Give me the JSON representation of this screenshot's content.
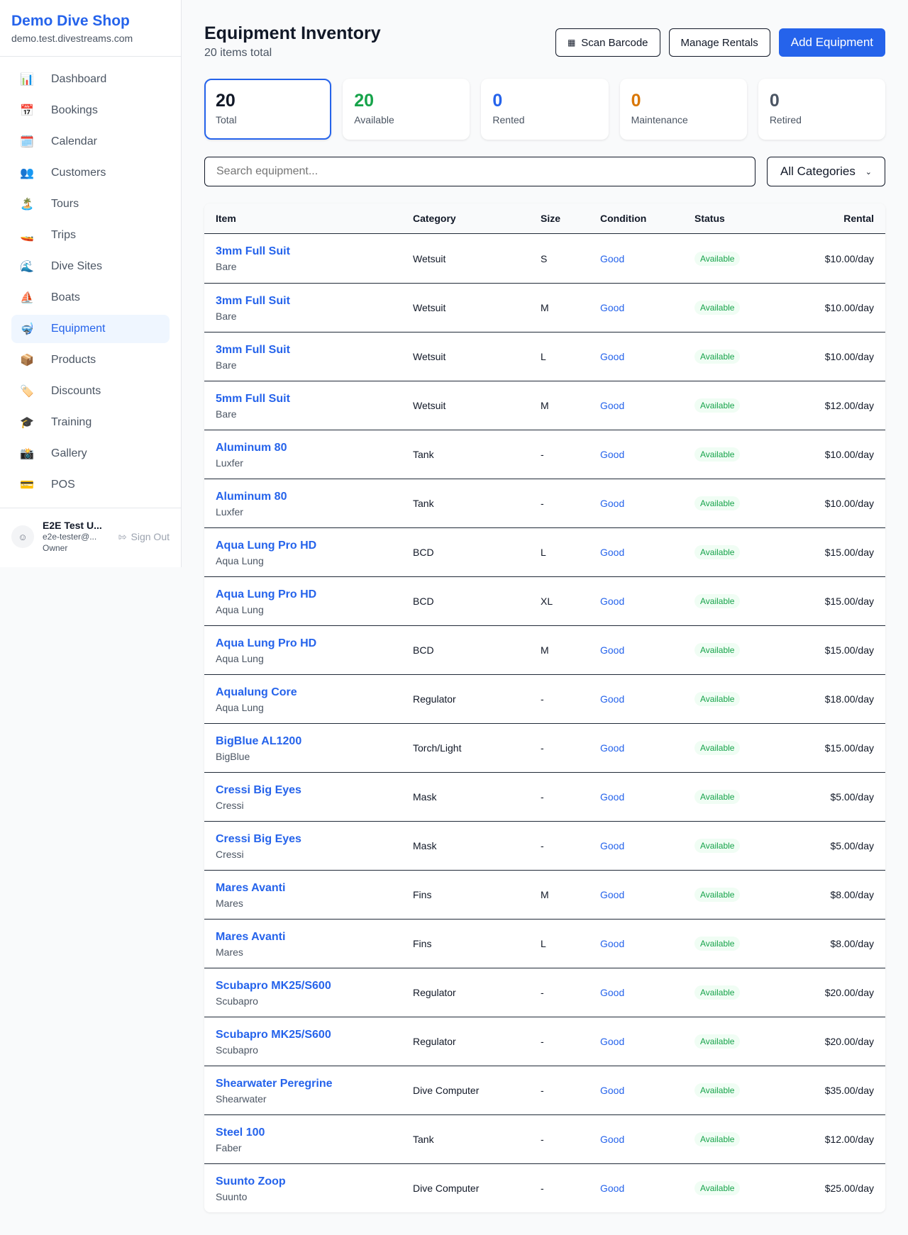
{
  "sidebar": {
    "brand": "Demo Dive Shop",
    "domain": "demo.test.divestreams.com",
    "items": [
      {
        "label": "Dashboard",
        "icon": "📊"
      },
      {
        "label": "Bookings",
        "icon": "📅"
      },
      {
        "label": "Calendar",
        "icon": "🗓️"
      },
      {
        "label": "Customers",
        "icon": "👥"
      },
      {
        "label": "Tours",
        "icon": "🏝️"
      },
      {
        "label": "Trips",
        "icon": "🚤"
      },
      {
        "label": "Dive Sites",
        "icon": "🌊"
      },
      {
        "label": "Boats",
        "icon": "⛵"
      },
      {
        "label": "Equipment",
        "icon": "🤿"
      },
      {
        "label": "Products",
        "icon": "📦"
      },
      {
        "label": "Discounts",
        "icon": "🏷️"
      },
      {
        "label": "Training",
        "icon": "🎓"
      },
      {
        "label": "Gallery",
        "icon": "📸"
      },
      {
        "label": "POS",
        "icon": "💳"
      }
    ],
    "active": "Equipment",
    "user": {
      "name": "E2E Test U...",
      "email": "e2e-tester@...",
      "role": "Owner",
      "sign_out": "Sign Out"
    }
  },
  "header": {
    "title": "Equipment Inventory",
    "subtitle": "20 items total",
    "scan": "Scan Barcode",
    "manage": "Manage Rentals",
    "add": "Add Equipment"
  },
  "stats": [
    {
      "value": "20",
      "label": "Total",
      "color": "#111827"
    },
    {
      "value": "20",
      "label": "Available",
      "color": "#16a34a"
    },
    {
      "value": "0",
      "label": "Rented",
      "color": "#2563eb"
    },
    {
      "value": "0",
      "label": "Maintenance",
      "color": "#d97706"
    },
    {
      "value": "0",
      "label": "Retired",
      "color": "#4b5563"
    }
  ],
  "filters": {
    "search_placeholder": "Search equipment...",
    "category": "All Categories"
  },
  "table": {
    "columns": [
      "Item",
      "Category",
      "Size",
      "Condition",
      "Status",
      "Rental"
    ],
    "rows": [
      [
        "3mm Full Suit",
        "Bare",
        "Wetsuit",
        "S",
        "Good",
        "Available",
        "$10.00/day"
      ],
      [
        "3mm Full Suit",
        "Bare",
        "Wetsuit",
        "M",
        "Good",
        "Available",
        "$10.00/day"
      ],
      [
        "3mm Full Suit",
        "Bare",
        "Wetsuit",
        "L",
        "Good",
        "Available",
        "$10.00/day"
      ],
      [
        "5mm Full Suit",
        "Bare",
        "Wetsuit",
        "M",
        "Good",
        "Available",
        "$12.00/day"
      ],
      [
        "Aluminum 80",
        "Luxfer",
        "Tank",
        "-",
        "Good",
        "Available",
        "$10.00/day"
      ],
      [
        "Aluminum 80",
        "Luxfer",
        "Tank",
        "-",
        "Good",
        "Available",
        "$10.00/day"
      ],
      [
        "Aqua Lung Pro HD",
        "Aqua Lung",
        "BCD",
        "L",
        "Good",
        "Available",
        "$15.00/day"
      ],
      [
        "Aqua Lung Pro HD",
        "Aqua Lung",
        "BCD",
        "XL",
        "Good",
        "Available",
        "$15.00/day"
      ],
      [
        "Aqua Lung Pro HD",
        "Aqua Lung",
        "BCD",
        "M",
        "Good",
        "Available",
        "$15.00/day"
      ],
      [
        "Aqualung Core",
        "Aqua Lung",
        "Regulator",
        "-",
        "Good",
        "Available",
        "$18.00/day"
      ],
      [
        "BigBlue AL1200",
        "BigBlue",
        "Torch/Light",
        "-",
        "Good",
        "Available",
        "$15.00/day"
      ],
      [
        "Cressi Big Eyes",
        "Cressi",
        "Mask",
        "-",
        "Good",
        "Available",
        "$5.00/day"
      ],
      [
        "Cressi Big Eyes",
        "Cressi",
        "Mask",
        "-",
        "Good",
        "Available",
        "$5.00/day"
      ],
      [
        "Mares Avanti",
        "Mares",
        "Fins",
        "M",
        "Good",
        "Available",
        "$8.00/day"
      ],
      [
        "Mares Avanti",
        "Mares",
        "Fins",
        "L",
        "Good",
        "Available",
        "$8.00/day"
      ],
      [
        "Scubapro MK25/S600",
        "Scubapro",
        "Regulator",
        "-",
        "Good",
        "Available",
        "$20.00/day"
      ],
      [
        "Scubapro MK25/S600",
        "Scubapro",
        "Regulator",
        "-",
        "Good",
        "Available",
        "$20.00/day"
      ],
      [
        "Shearwater Peregrine",
        "Shearwater",
        "Dive Computer",
        "-",
        "Good",
        "Available",
        "$35.00/day"
      ],
      [
        "Steel 100",
        "Faber",
        "Tank",
        "-",
        "Good",
        "Available",
        "$12.00/day"
      ],
      [
        "Suunto Zoop",
        "Suunto",
        "Dive Computer",
        "-",
        "Good",
        "Available",
        "$25.00/day"
      ]
    ]
  }
}
